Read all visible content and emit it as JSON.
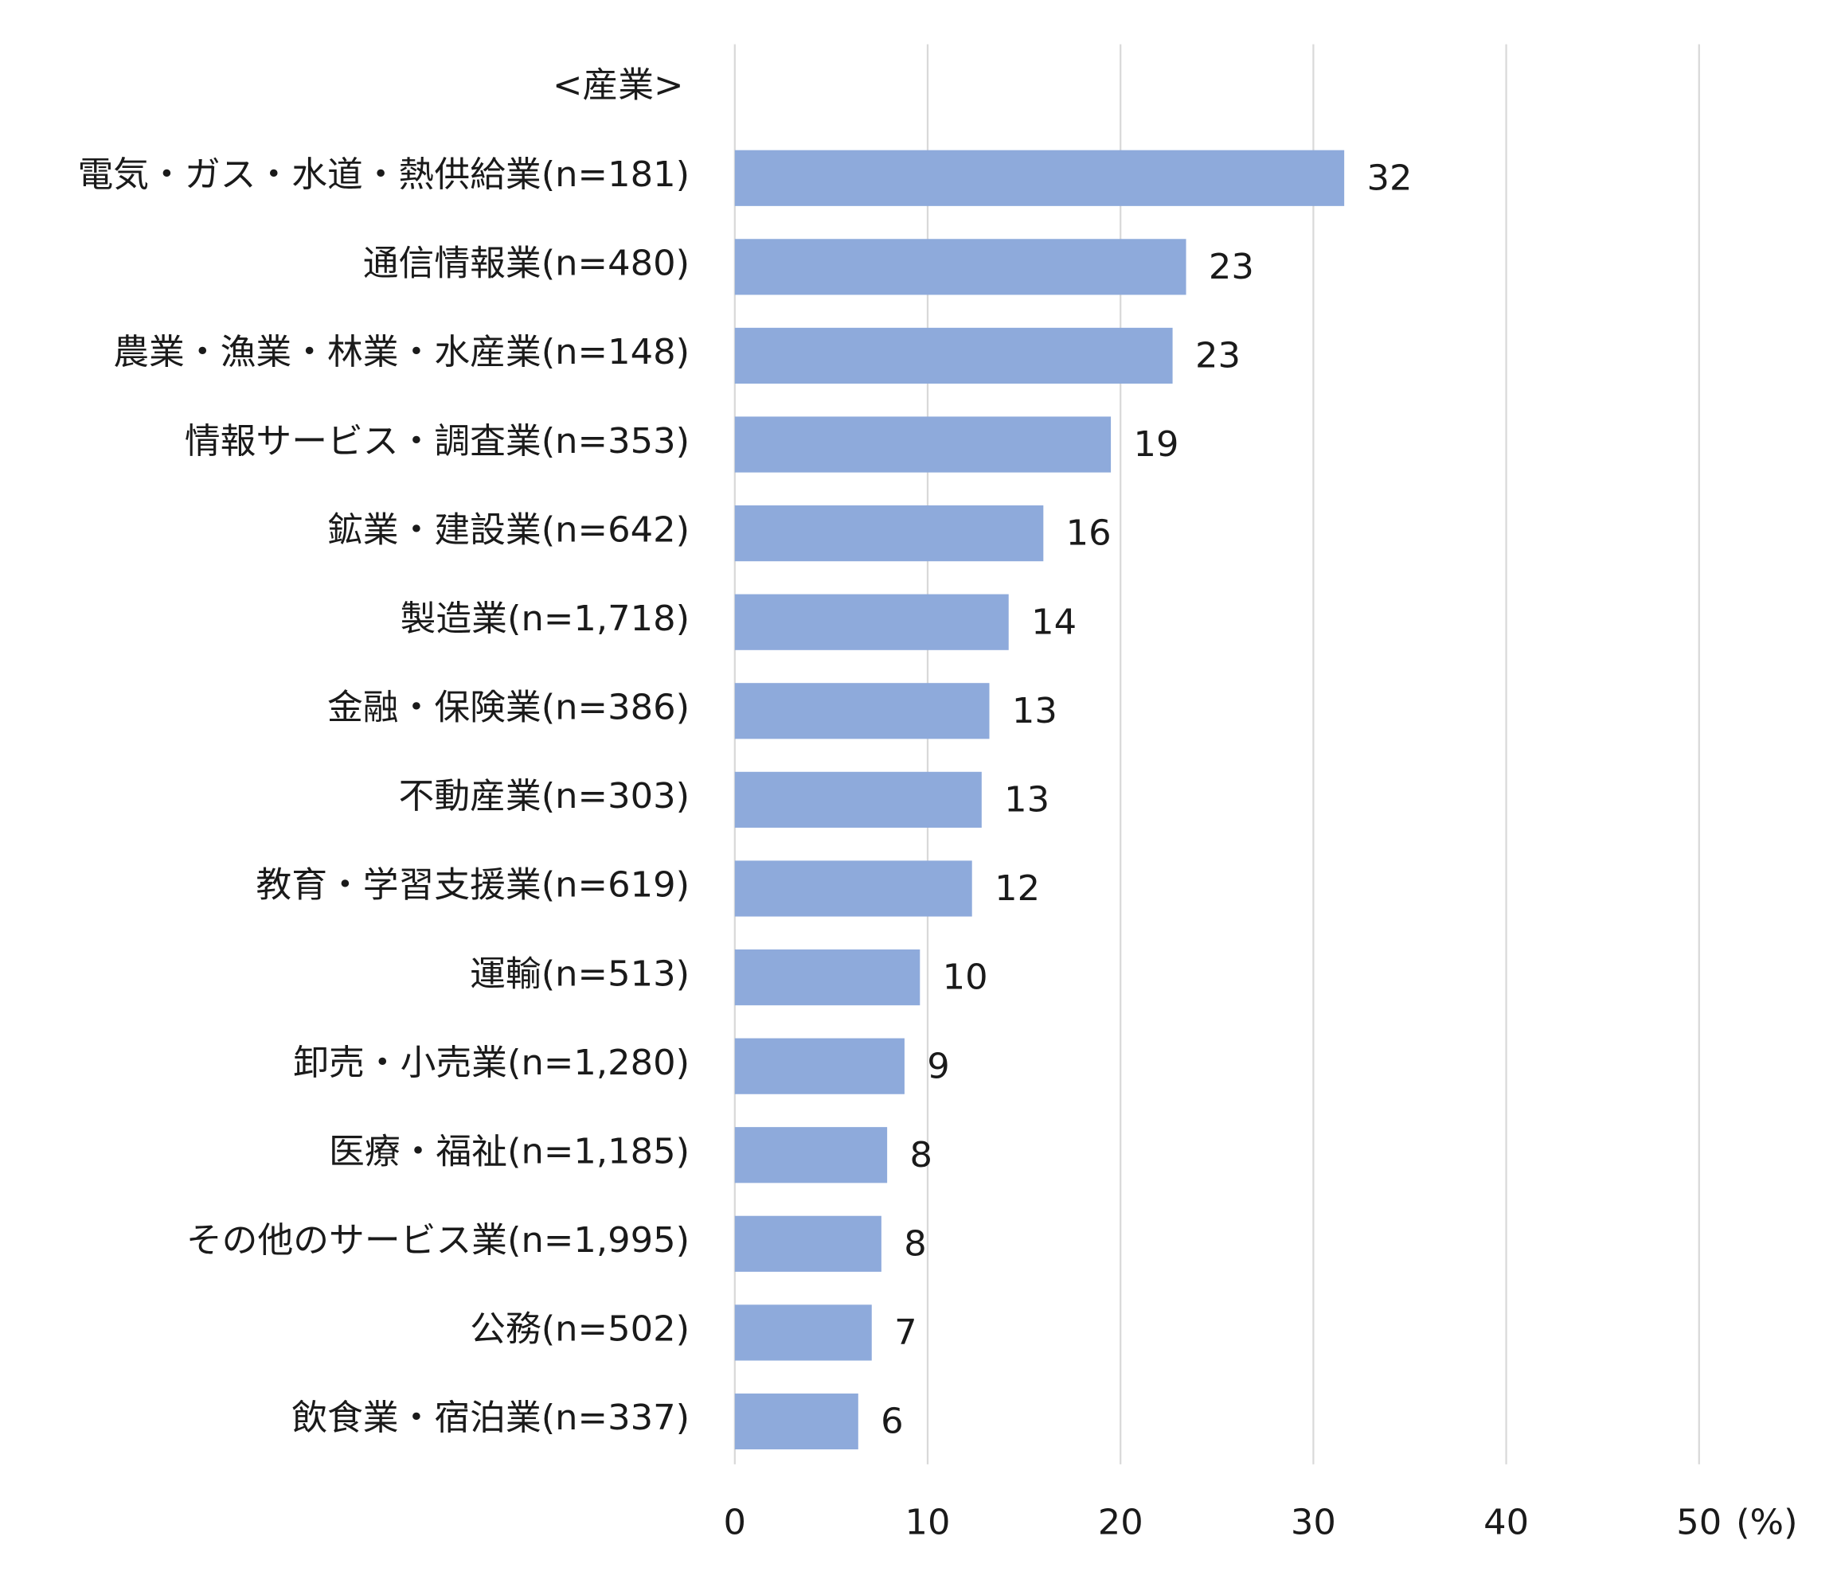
{
  "chart_data": {
    "type": "bar",
    "orientation": "horizontal",
    "group_label": "<産業>",
    "unit_label": "(%)",
    "categories": [
      "電気・ガス・水道・熱供給業(n=181)",
      "通信情報業(n=480)",
      "農業・漁業・林業・水産業(n=148)",
      "情報サービス・調査業(n=353)",
      "鉱業・建設業(n=642)",
      "製造業(n=1,718)",
      "金融・保険業(n=386)",
      "不動産業(n=303)",
      "教育・学習支援業(n=619)",
      "運輸(n=513)",
      "卸売・小売業(n=1,280)",
      "医療・福祉(n=1,185)",
      "その他のサービス業(n=1,995)",
      "公務(n=502)",
      "飲食業・宿泊業(n=337)"
    ],
    "values": [
      31.6,
      23.4,
      22.7,
      19.5,
      16.0,
      14.2,
      13.2,
      12.8,
      12.3,
      9.6,
      8.8,
      7.9,
      7.6,
      7.1,
      6.4
    ],
    "data_labels": [
      "32",
      "23",
      "23",
      "19",
      "16",
      "14",
      "13",
      "13",
      "12",
      "10",
      "9",
      "8",
      "8",
      "7",
      "6"
    ],
    "xlim": [
      0,
      50
    ],
    "xticks": [
      "0",
      "10",
      "20",
      "30",
      "40",
      "50"
    ],
    "grid": true,
    "bar_color": "#8eaadb",
    "grid_color": "#d9d9d9"
  }
}
